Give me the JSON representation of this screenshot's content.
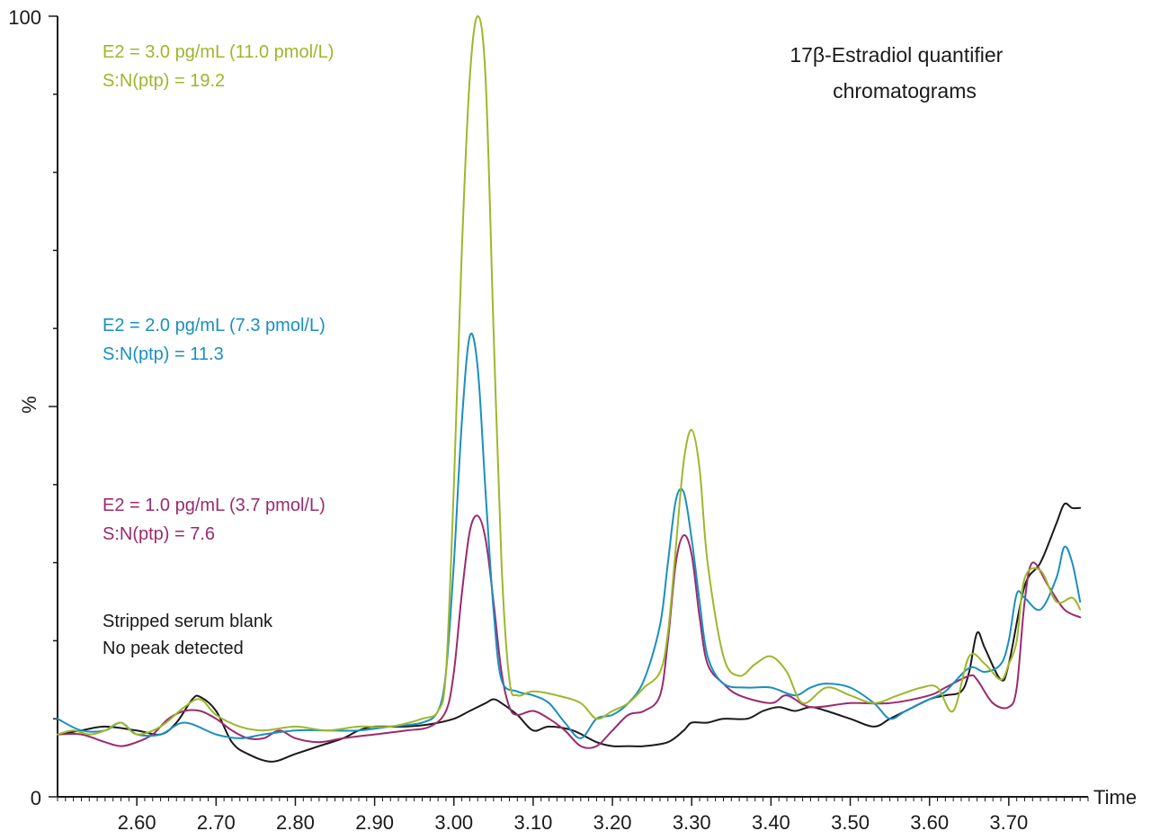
{
  "chart_data": {
    "type": "line",
    "title": "17β-Estradiol quantifier chromatograms",
    "title_lines": [
      "17β-Estradiol quantifier",
      "chromatograms"
    ],
    "xlabel": "Time",
    "ylabel": "%",
    "xlim": [
      2.5,
      3.8
    ],
    "ylim": [
      0,
      100
    ],
    "x_ticks": [
      2.6,
      2.7,
      2.8,
      2.9,
      3.0,
      3.1,
      3.2,
      3.3,
      3.4,
      3.5,
      3.6,
      3.7
    ],
    "x_tick_labels": [
      "2.60",
      "2.70",
      "2.80",
      "2.90",
      "3.00",
      "3.10",
      "3.20",
      "3.30",
      "3.40",
      "3.50",
      "3.60",
      "3.70"
    ],
    "y_tick_labels": [
      "0",
      "%",
      "100"
    ],
    "grid": false,
    "series": [
      {
        "name": "Stripped serum blank",
        "color": "#1a1a1a",
        "annotation": [
          "Stripped serum blank",
          "No peak detected"
        ],
        "x": [
          2.5,
          2.53,
          2.56,
          2.6,
          2.63,
          2.65,
          2.67,
          2.68,
          2.7,
          2.72,
          2.74,
          2.77,
          2.8,
          2.83,
          2.86,
          2.88,
          2.9,
          2.94,
          2.97,
          3.0,
          3.02,
          3.04,
          3.05,
          3.06,
          3.08,
          3.1,
          3.12,
          3.15,
          3.18,
          3.2,
          3.22,
          3.24,
          3.27,
          3.29,
          3.3,
          3.32,
          3.34,
          3.37,
          3.39,
          3.41,
          3.43,
          3.45,
          3.47,
          3.5,
          3.53,
          3.55,
          3.57,
          3.6,
          3.62,
          3.64,
          3.65,
          3.66,
          3.67,
          3.69,
          3.7,
          3.72,
          3.74,
          3.76,
          3.77,
          3.78,
          3.79
        ],
        "y": [
          8.0,
          8.5,
          9.0,
          8.5,
          8.0,
          9.5,
          12.5,
          12.8,
          11.0,
          7.0,
          5.5,
          4.5,
          5.5,
          6.5,
          7.5,
          8.5,
          9.0,
          9.0,
          9.3,
          10.0,
          11.0,
          12.0,
          12.5,
          12.0,
          10.5,
          8.5,
          9.0,
          8.5,
          7.0,
          6.5,
          6.5,
          6.5,
          7.0,
          8.5,
          9.5,
          9.5,
          10.0,
          10.0,
          11.0,
          11.5,
          11.0,
          11.5,
          11.0,
          10.0,
          9.0,
          10.0,
          11.0,
          12.5,
          13.0,
          13.5,
          16.0,
          21.0,
          19.0,
          15.0,
          17.0,
          27.0,
          30.0,
          35.0,
          37.5,
          37.0,
          37.0
        ]
      },
      {
        "name": "E2 = 1.0 pg/mL",
        "color": "#9c2a6d",
        "annotation": [
          "E2 = 1.0 pg/mL (3.7 pmol/L)",
          "S:N(ptp) = 7.6"
        ],
        "x": [
          2.5,
          2.53,
          2.56,
          2.58,
          2.6,
          2.62,
          2.64,
          2.66,
          2.68,
          2.7,
          2.72,
          2.74,
          2.76,
          2.78,
          2.8,
          2.83,
          2.86,
          2.9,
          2.94,
          2.97,
          2.99,
          3.0,
          3.01,
          3.02,
          3.03,
          3.04,
          3.05,
          3.06,
          3.07,
          3.08,
          3.1,
          3.12,
          3.14,
          3.16,
          3.18,
          3.2,
          3.22,
          3.24,
          3.26,
          3.27,
          3.28,
          3.29,
          3.3,
          3.31,
          3.32,
          3.34,
          3.36,
          3.4,
          3.42,
          3.45,
          3.5,
          3.55,
          3.6,
          3.62,
          3.65,
          3.66,
          3.68,
          3.7,
          3.71,
          3.72,
          3.73,
          3.75,
          3.77,
          3.79
        ],
        "y": [
          8.0,
          8.0,
          7.0,
          6.5,
          7.0,
          8.0,
          10.0,
          11.0,
          11.0,
          10.0,
          8.5,
          7.5,
          7.5,
          8.5,
          7.5,
          7.0,
          7.5,
          8.0,
          8.5,
          9.0,
          11.0,
          16.0,
          26.0,
          34.0,
          36.0,
          33.0,
          25.0,
          16.0,
          11.5,
          10.5,
          11.0,
          10.0,
          8.5,
          6.5,
          6.5,
          8.5,
          10.5,
          11.0,
          13.0,
          20.0,
          30.0,
          33.5,
          31.0,
          23.0,
          17.0,
          14.5,
          13.0,
          12.0,
          13.0,
          11.5,
          12.0,
          12.0,
          13.0,
          14.0,
          15.5,
          15.0,
          12.0,
          11.5,
          14.0,
          25.0,
          30.0,
          27.0,
          24.0,
          23.0
        ]
      },
      {
        "name": "E2 = 2.0 pg/mL",
        "color": "#1a8fc0",
        "annotation": [
          "E2 = 2.0 pg/mL (7.3 pmol/L)",
          "S:N(ptp) = 11.3"
        ],
        "x": [
          2.5,
          2.53,
          2.56,
          2.58,
          2.6,
          2.63,
          2.66,
          2.7,
          2.73,
          2.76,
          2.8,
          2.84,
          2.88,
          2.92,
          2.96,
          2.98,
          2.99,
          3.0,
          3.01,
          3.02,
          3.03,
          3.04,
          3.05,
          3.06,
          3.08,
          3.1,
          3.12,
          3.14,
          3.16,
          3.18,
          3.2,
          3.22,
          3.24,
          3.26,
          3.27,
          3.28,
          3.29,
          3.3,
          3.31,
          3.32,
          3.34,
          3.37,
          3.4,
          3.43,
          3.45,
          3.47,
          3.5,
          3.53,
          3.55,
          3.57,
          3.6,
          3.62,
          3.65,
          3.67,
          3.69,
          3.7,
          3.71,
          3.72,
          3.74,
          3.76,
          3.77,
          3.78,
          3.79
        ],
        "y": [
          10.0,
          8.5,
          8.5,
          9.5,
          8.0,
          8.0,
          9.5,
          8.0,
          7.5,
          8.0,
          8.5,
          8.5,
          8.5,
          9.0,
          9.5,
          11.0,
          16.0,
          30.0,
          48.0,
          59.0,
          55.0,
          39.0,
          24.0,
          15.0,
          13.5,
          13.0,
          12.0,
          9.5,
          7.5,
          10.0,
          10.5,
          12.0,
          15.0,
          22.0,
          30.0,
          38.0,
          39.0,
          33.0,
          25.0,
          18.0,
          14.5,
          14.0,
          14.0,
          13.0,
          14.0,
          14.5,
          14.0,
          12.0,
          10.0,
          11.0,
          12.5,
          13.5,
          16.5,
          16.0,
          17.0,
          20.0,
          26.0,
          25.5,
          24.0,
          28.0,
          32.0,
          30.0,
          25.0
        ]
      },
      {
        "name": "E2 = 3.0 pg/mL",
        "color": "#9cb82a",
        "annotation": [
          "E2 = 3.0 pg/mL (11.0 pmol/L)",
          "S:N(ptp) = 19.2"
        ],
        "x": [
          2.5,
          2.52,
          2.54,
          2.56,
          2.58,
          2.6,
          2.63,
          2.66,
          2.68,
          2.7,
          2.73,
          2.76,
          2.8,
          2.84,
          2.88,
          2.92,
          2.96,
          2.98,
          2.99,
          3.0,
          3.01,
          3.02,
          3.03,
          3.04,
          3.05,
          3.06,
          3.07,
          3.08,
          3.1,
          3.13,
          3.16,
          3.18,
          3.2,
          3.22,
          3.24,
          3.26,
          3.27,
          3.28,
          3.29,
          3.3,
          3.31,
          3.32,
          3.34,
          3.36,
          3.38,
          3.4,
          3.42,
          3.44,
          3.47,
          3.5,
          3.53,
          3.56,
          3.59,
          3.61,
          3.63,
          3.65,
          3.67,
          3.69,
          3.7,
          3.71,
          3.72,
          3.74,
          3.76,
          3.78,
          3.79
        ],
        "y": [
          8.0,
          8.5,
          8.0,
          8.5,
          9.5,
          8.0,
          9.0,
          11.5,
          12.5,
          10.5,
          9.0,
          8.5,
          9.0,
          8.5,
          9.0,
          9.0,
          10.0,
          11.0,
          16.0,
          40.0,
          70.0,
          92.0,
          100.0,
          92.0,
          60.0,
          30.0,
          15.0,
          13.0,
          13.5,
          13.0,
          12.0,
          10.0,
          11.0,
          12.0,
          14.0,
          16.0,
          21.0,
          32.0,
          43.0,
          47.0,
          42.0,
          30.0,
          18.0,
          15.5,
          17.0,
          18.0,
          16.0,
          12.0,
          14.0,
          13.0,
          12.0,
          13.0,
          14.0,
          14.0,
          11.0,
          18.0,
          17.0,
          15.0,
          17.0,
          20.0,
          28.0,
          29.0,
          25.0,
          25.5,
          24.0
        ]
      }
    ]
  }
}
